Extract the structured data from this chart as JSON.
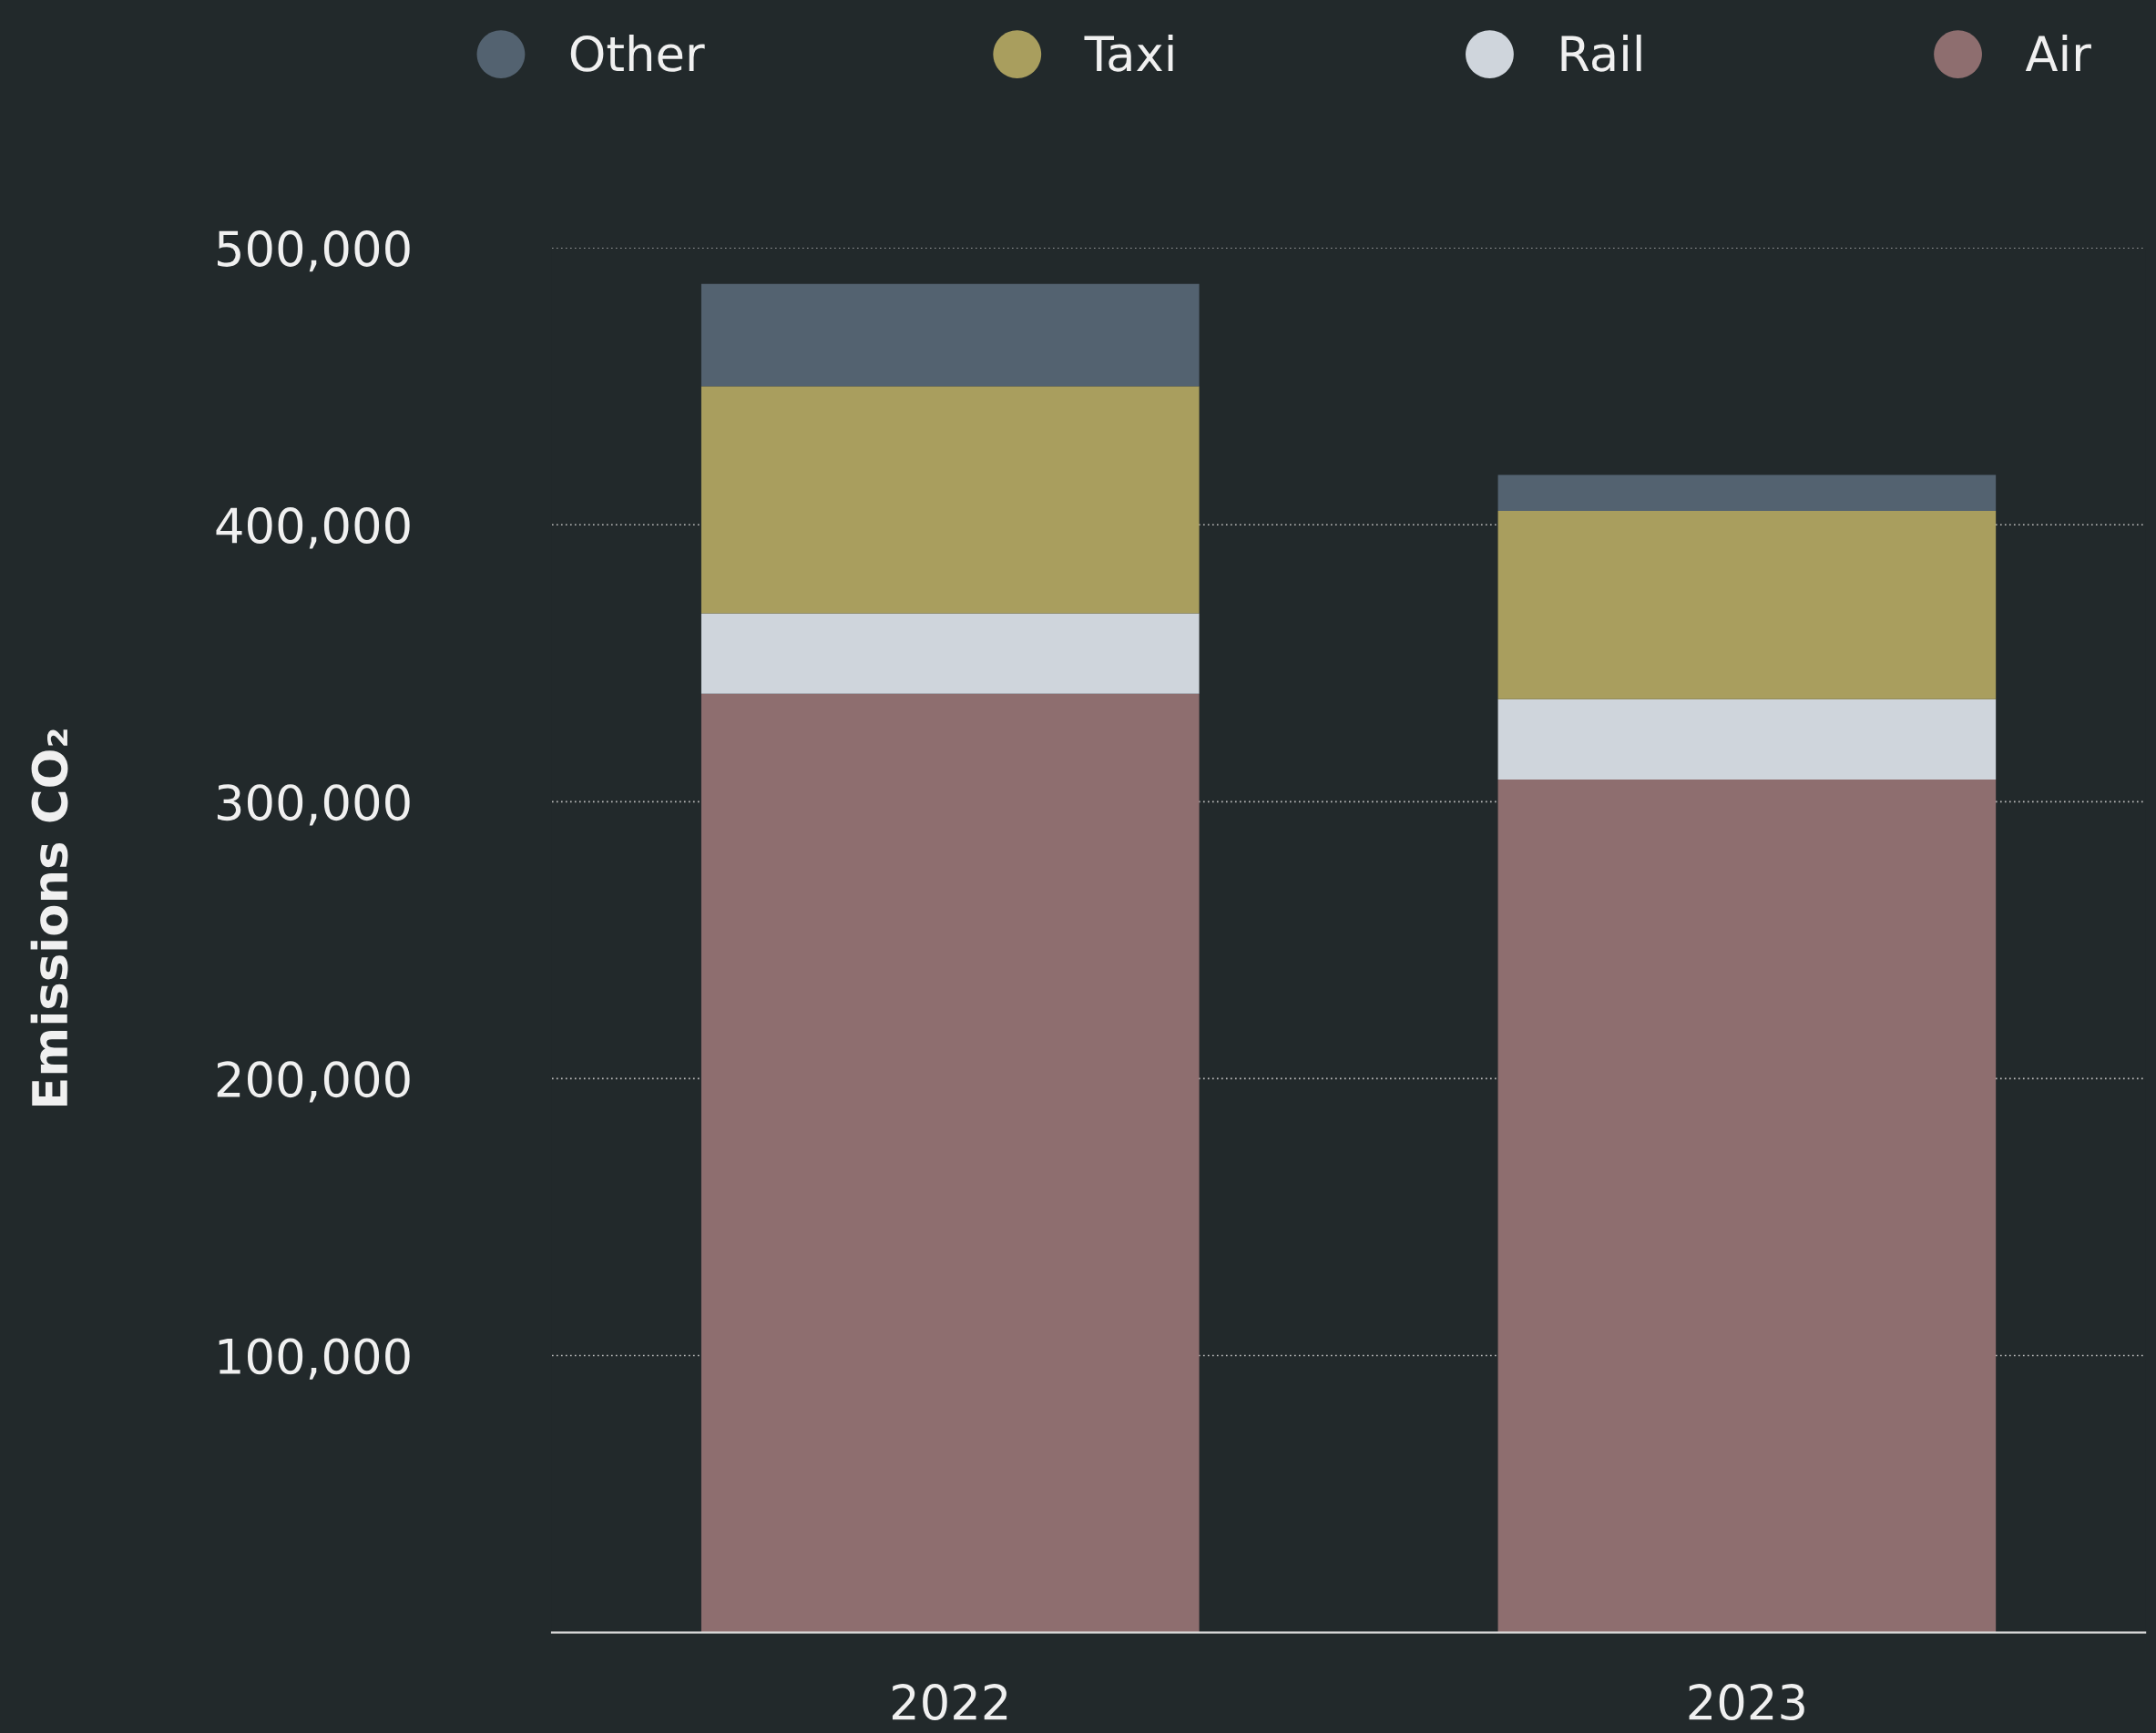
{
  "chart_data": {
    "type": "bar",
    "stacked": true,
    "ylabel": "Emissions CO₂",
    "categories": [
      "2022",
      "2023"
    ],
    "series": [
      {
        "name": "Air",
        "color": "#8e6e6f",
        "values": [
          339000,
          308000
        ]
      },
      {
        "name": "Rail",
        "color": "#cfd5dc",
        "values": [
          29000,
          29000
        ]
      },
      {
        "name": "Taxi",
        "color": "#a99e5e",
        "values": [
          82000,
          68000
        ]
      },
      {
        "name": "Other",
        "color": "#536270",
        "values": [
          37000,
          13000
        ]
      }
    ],
    "ylim": [
      0,
      500000
    ],
    "yticks": [
      {
        "value": 100000,
        "label": "100,000"
      },
      {
        "value": 200000,
        "label": "200,000"
      },
      {
        "value": 300000,
        "label": "300,000"
      },
      {
        "value": 400000,
        "label": "400,000"
      },
      {
        "value": 500000,
        "label": "500,000"
      }
    ],
    "grid": "y",
    "legend": "top"
  }
}
